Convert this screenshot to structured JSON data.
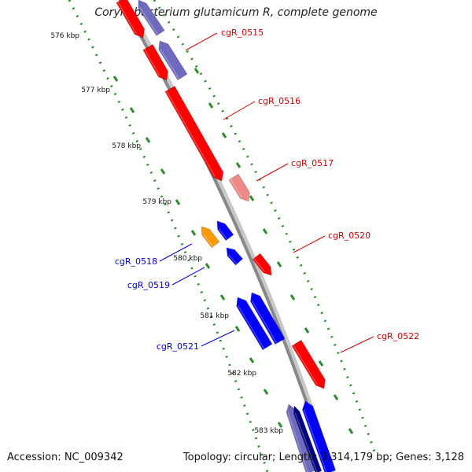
{
  "header": {
    "title": "Corynebacterium glutamicum R, complete genome"
  },
  "footer": {
    "accession": "Accession: NC_009342",
    "summary": "Topology: circular; Length: 3,314,179 bp; Genes: 3,128"
  },
  "colors": {
    "forward_gene": "#ff0000",
    "forward_gene_light": "#f08a8a",
    "reverse_gene": "#0000ff",
    "reverse_gene_dark": "#000080",
    "reverse_gene_purple": "#6e6abe",
    "rna_gene": "#ff9900",
    "backbone": "#888888",
    "tick_marks": "#2e8b2e",
    "forward_label": "#cc0000",
    "reverse_label": "#0000cc"
  },
  "ruler": {
    "kbp_labels": [
      "576 kbp",
      "577 kbp",
      "578 kbp",
      "579 kbp",
      "580 kbp",
      "581 kbp",
      "582 kbp",
      "583 kbp"
    ]
  },
  "genes": [
    {
      "id": "f1",
      "strand": "+",
      "color_key": "forward_gene"
    },
    {
      "id": "r1",
      "strand": "-",
      "color_key": "reverse_gene_purple"
    },
    {
      "id": "cgR_0515",
      "strand": "+",
      "color_key": "forward_gene",
      "label": "cgR_0515"
    },
    {
      "id": "cgR_0515b",
      "strand": "-",
      "color_key": "reverse_gene_purple"
    },
    {
      "id": "cgR_0516",
      "strand": "+",
      "color_key": "forward_gene",
      "label": "cgR_0516"
    },
    {
      "id": "cgR_0517",
      "strand": "+",
      "color_key": "forward_gene_light",
      "label": "cgR_0517"
    },
    {
      "id": "cgR_0518",
      "strand": "-",
      "color_key": "rna_gene",
      "label": "cgR_0518"
    },
    {
      "id": "g_blue1",
      "strand": "-",
      "color_key": "reverse_gene"
    },
    {
      "id": "cgR_0519",
      "strand": "-",
      "color_key": "reverse_gene",
      "label": "cgR_0519"
    },
    {
      "id": "cgR_0520",
      "strand": "+",
      "color_key": "forward_gene",
      "label": "cgR_0520"
    },
    {
      "id": "cgR_0521a",
      "strand": "-",
      "color_key": "reverse_gene"
    },
    {
      "id": "cgR_0521",
      "strand": "-",
      "color_key": "reverse_gene",
      "label": "cgR_0521"
    },
    {
      "id": "cgR_0522",
      "strand": "+",
      "color_key": "forward_gene",
      "label": "cgR_0522"
    },
    {
      "id": "g_bottom1",
      "strand": "-",
      "color_key": "reverse_gene_purple"
    },
    {
      "id": "g_bottom2",
      "strand": "-",
      "color_key": "reverse_gene_dark"
    },
    {
      "id": "g_bottom3",
      "strand": "-",
      "color_key": "reverse_gene"
    }
  ]
}
